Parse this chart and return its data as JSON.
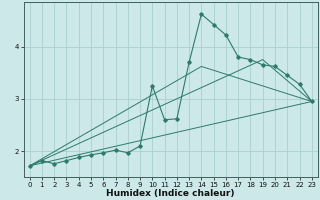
{
  "title": "",
  "xlabel": "Humidex (Indice chaleur)",
  "ylabel": "",
  "bg_color": "#cce8e8",
  "grid_color": "#aacfcf",
  "line_color": "#2e7a6e",
  "xlim": [
    -0.5,
    23.5
  ],
  "ylim": [
    1.5,
    4.85
  ],
  "xticks": [
    0,
    1,
    2,
    3,
    4,
    5,
    6,
    7,
    8,
    9,
    10,
    11,
    12,
    13,
    14,
    15,
    16,
    17,
    18,
    19,
    20,
    21,
    22,
    23
  ],
  "yticks": [
    2,
    3,
    4
  ],
  "line1_x": [
    0,
    1,
    2,
    3,
    4,
    5,
    6,
    7,
    8,
    9,
    10,
    11,
    12,
    13,
    14,
    15,
    16,
    17,
    18,
    19,
    20,
    21,
    22,
    23
  ],
  "line1_y": [
    1.72,
    1.82,
    1.76,
    1.82,
    1.88,
    1.93,
    1.97,
    2.02,
    1.97,
    2.1,
    3.25,
    2.6,
    2.62,
    3.7,
    4.62,
    4.42,
    4.22,
    3.8,
    3.75,
    3.65,
    3.62,
    3.45,
    3.28,
    2.95
  ],
  "line2_x": [
    0,
    23
  ],
  "line2_y": [
    1.72,
    2.95
  ],
  "line3_x": [
    0,
    14,
    23
  ],
  "line3_y": [
    1.72,
    3.62,
    2.95
  ],
  "line4_x": [
    0,
    19,
    23
  ],
  "line4_y": [
    1.72,
    3.75,
    2.95
  ]
}
